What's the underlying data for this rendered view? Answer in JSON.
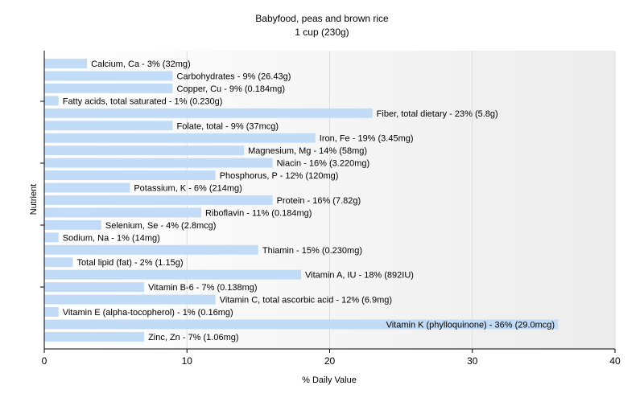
{
  "chart_data": {
    "type": "bar",
    "orientation": "horizontal",
    "title": "Babyfood, peas and brown rice",
    "subtitle": "1 cup (230g)",
    "xlabel": "% Daily Value",
    "ylabel": "Nutrient",
    "xlim": [
      0,
      40
    ],
    "xticks": [
      "0",
      "10",
      "20",
      "30",
      "40"
    ],
    "grid": true,
    "bar_color": "#c2dcf7",
    "categories": [
      "Calcium, Ca - 3% (32mg)",
      "Carbohydrates - 9% (26.43g)",
      "Copper, Cu - 9% (0.184mg)",
      "Fatty acids, total saturated - 1% (0.230g)",
      "Fiber, total dietary - 23% (5.8g)",
      "Folate, total - 9% (37mcg)",
      "Iron, Fe - 19% (3.45mg)",
      "Magnesium, Mg - 14% (58mg)",
      "Niacin - 16% (3.220mg)",
      "Phosphorus, P - 12% (120mg)",
      "Potassium, K - 6% (214mg)",
      "Protein - 16% (7.82g)",
      "Riboflavin - 11% (0.184mg)",
      "Selenium, Se - 4% (2.8mcg)",
      "Sodium, Na - 1% (14mg)",
      "Thiamin - 15% (0.230mg)",
      "Total lipid (fat) - 2% (1.15g)",
      "Vitamin A, IU - 18% (892IU)",
      "Vitamin B-6 - 7% (0.138mg)",
      "Vitamin C, total ascorbic acid - 12% (6.9mg)",
      "Vitamin E (alpha-tocopherol) - 1% (0.16mg)",
      "Vitamin K (phylloquinone) - 36% (29.0mcg)",
      "Zinc, Zn - 7% (1.06mg)"
    ],
    "values": [
      3,
      9,
      9,
      1,
      23,
      9,
      19,
      14,
      16,
      12,
      6,
      16,
      11,
      4,
      1,
      15,
      2,
      18,
      7,
      12,
      1,
      36,
      7
    ]
  }
}
